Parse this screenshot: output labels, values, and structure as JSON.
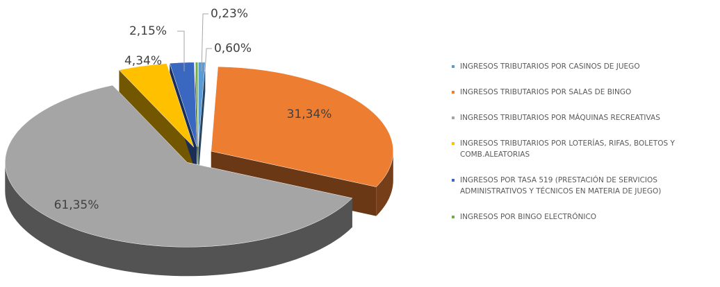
{
  "chart_data": {
    "type": "pie3d",
    "categories": [
      "INGRESOS TRIBUTARIOS POR CASINOS DE JUEGO",
      "INGRESOS TRIBUTARIOS POR SALAS DE BINGO",
      "INGRESOS TRIBUTARIOS POR MÁQUINAS RECREATIVAS",
      "INGRESOS TRIBUTARIOS POR LOTERÍAS, RIFAS, BOLETOS Y COMB.ALEATORIAS",
      "INGRESOS POR TASA 519 (PRESTACIÓN DE SERVICIOS ADMINISTRATIVOS Y TÉCNICOS EN MATERIA DE JUEGO)",
      "INGRESOS POR BINGO ELECTRÓNICO"
    ],
    "values": [
      0.6,
      31.34,
      61.35,
      4.34,
      2.15,
      0.23
    ],
    "value_labels": [
      "0,60%",
      "31,34%",
      "61,35%",
      "4,34%",
      "2,15%",
      "0,23%"
    ],
    "colors": [
      "#5b9bd5",
      "#ed7d31",
      "#a5a5a5",
      "#ffc000",
      "#3a67c0",
      "#70ad47"
    ],
    "legend": "right"
  }
}
